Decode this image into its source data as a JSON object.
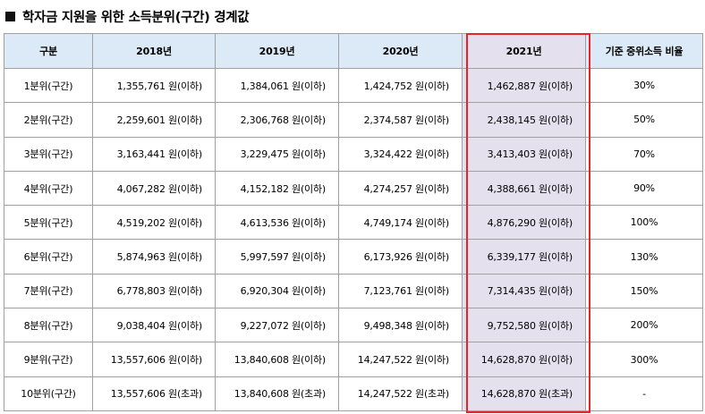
{
  "title": "학자금 지원을 위한 소득분위(구간) 경계값",
  "colors": {
    "header_bg": "#dbeaf6",
    "highlight_bg": "#e5e0ee",
    "highlight_border": "#e8242b"
  },
  "table": {
    "headers": [
      "구분",
      "2018년",
      "2019년",
      "2020년",
      "2021년",
      "기준 중위소득 비율"
    ],
    "rows": [
      [
        "1분위(구간)",
        "1,355,761 원(이하)",
        "1,384,061 원(이하)",
        "1,424,752 원(이하)",
        "1,462,887 원(이하)",
        "30%"
      ],
      [
        "2분위(구간)",
        "2,259,601 원(이하)",
        "2,306,768 원(이하)",
        "2,374,587 원(이하)",
        "2,438,145 원(이하)",
        "50%"
      ],
      [
        "3분위(구간)",
        "3,163,441 원(이하)",
        "3,229,475 원(이하)",
        "3,324,422 원(이하)",
        "3,413,403 원(이하)",
        "70%"
      ],
      [
        "4분위(구간)",
        "4,067,282 원(이하)",
        "4,152,182 원(이하)",
        "4,274,257 원(이하)",
        "4,388,661 원(이하)",
        "90%"
      ],
      [
        "5분위(구간)",
        "4,519,202 원(이하)",
        "4,613,536 원(이하)",
        "4,749,174 원(이하)",
        "4,876,290 원(이하)",
        "100%"
      ],
      [
        "6분위(구간)",
        "5,874,963 원(이하)",
        "5,997,597 원(이하)",
        "6,173,926 원(이하)",
        "6,339,177 원(이하)",
        "130%"
      ],
      [
        "7분위(구간)",
        "6,778,803 원(이하)",
        "6,920,304 원(이하)",
        "7,123,761 원(이하)",
        "7,314,435 원(이하)",
        "150%"
      ],
      [
        "8분위(구간)",
        "9,038,404 원(이하)",
        "9,227,072 원(이하)",
        "9,498,348 원(이하)",
        "9,752,580 원(이하)",
        "200%"
      ],
      [
        "9분위(구간)",
        "13,557,606 원(이하)",
        "13,840,608 원(이하)",
        "14,247,522 원(이하)",
        "14,628,870 원(이하)",
        "300%"
      ],
      [
        "10분위(구간)",
        "13,557,606 원(초과)",
        "13,840,608 원(초과)",
        "14,247,522 원(초과)",
        "14,628,870 원(초과)",
        "-"
      ]
    ]
  }
}
